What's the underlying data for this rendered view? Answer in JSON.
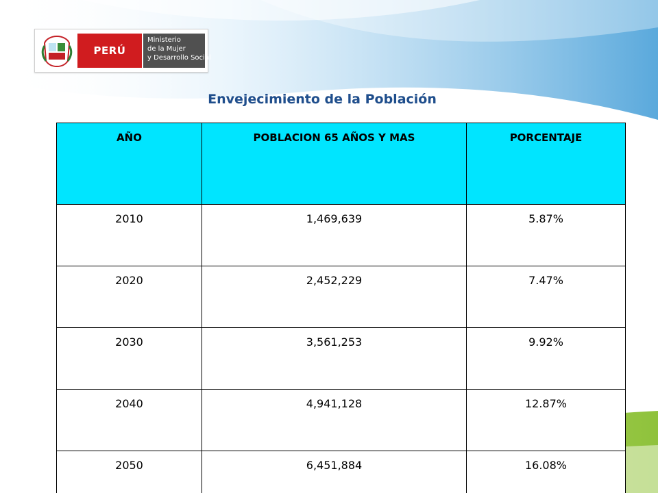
{
  "header": {
    "country": "PERÚ",
    "ministry_lines": [
      "Ministerio",
      "de la Mujer",
      "y Desarrollo Social"
    ],
    "shield_icon": "coat-of-arms-icon"
  },
  "title": "Envejecimiento de la Población",
  "table": {
    "headers": [
      "AÑO",
      "POBLACION 65 AÑOS Y MAS",
      "PORCENTAJE"
    ],
    "rows": [
      [
        "2010",
        "1,469,639",
        "5.87%"
      ],
      [
        "2020",
        "2,452,229",
        "7.47%"
      ],
      [
        "2030",
        "3,561,253",
        "9.92%"
      ],
      [
        "2040",
        "4,941,128",
        "12.87%"
      ],
      [
        "2050",
        "6,451,884",
        "16.08%"
      ]
    ]
  },
  "colors": {
    "header_cell": "#00e5ff",
    "title_text": "#1f4e8c",
    "peru_red": "#d01c1f",
    "ministry_gray": "#505050",
    "accent_green": "#9ccc3c"
  }
}
